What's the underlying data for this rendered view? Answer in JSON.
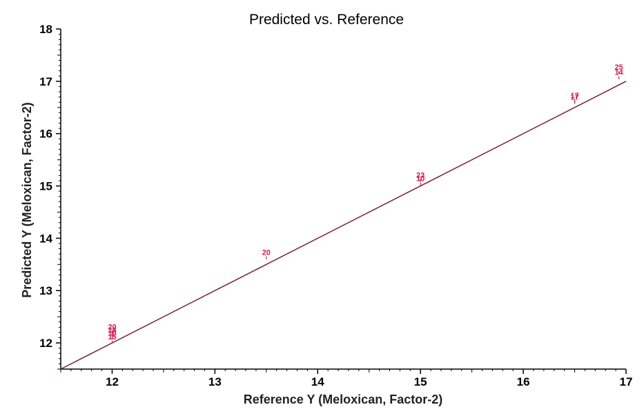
{
  "chart_data": {
    "type": "scatter",
    "title": "Predicted vs. Reference",
    "xlabel": "Reference Y (Meloxican, Factor-2)",
    "ylabel": "Predicted Y (Meloxican, Factor-2)",
    "xlim": [
      11.5,
      17
    ],
    "ylim": [
      11.5,
      18
    ],
    "xticks": [
      "12",
      "13",
      "14",
      "15",
      "16",
      "17"
    ],
    "yticks": [
      "12",
      "13",
      "14",
      "15",
      "16",
      "17",
      "18"
    ],
    "grid": false,
    "regression_line": {
      "x": [
        11.5,
        17
      ],
      "y": [
        11.5,
        17
      ]
    },
    "colors": {
      "points": "#e0174e",
      "line": "#7a1f33",
      "axis": "#000000"
    },
    "points": [
      {
        "x": 12,
        "y": 12.26,
        "label": "20"
      },
      {
        "x": 12,
        "y": 12.2,
        "label": "18"
      },
      {
        "x": 12,
        "y": 12.14,
        "label": "10"
      },
      {
        "x": 12,
        "y": 12.07,
        "label": "15"
      },
      {
        "x": 13.5,
        "y": 13.68,
        "label": "20"
      },
      {
        "x": 15,
        "y": 15.16,
        "label": "23"
      },
      {
        "x": 15,
        "y": 15.09,
        "label": "10"
      },
      {
        "x": 16.5,
        "y": 16.68,
        "label": "17"
      },
      {
        "x": 16.5,
        "y": 16.65,
        "label": "17"
      },
      {
        "x": 16.93,
        "y": 17.22,
        "label": "25"
      },
      {
        "x": 16.93,
        "y": 17.12,
        "label": "14"
      }
    ]
  }
}
